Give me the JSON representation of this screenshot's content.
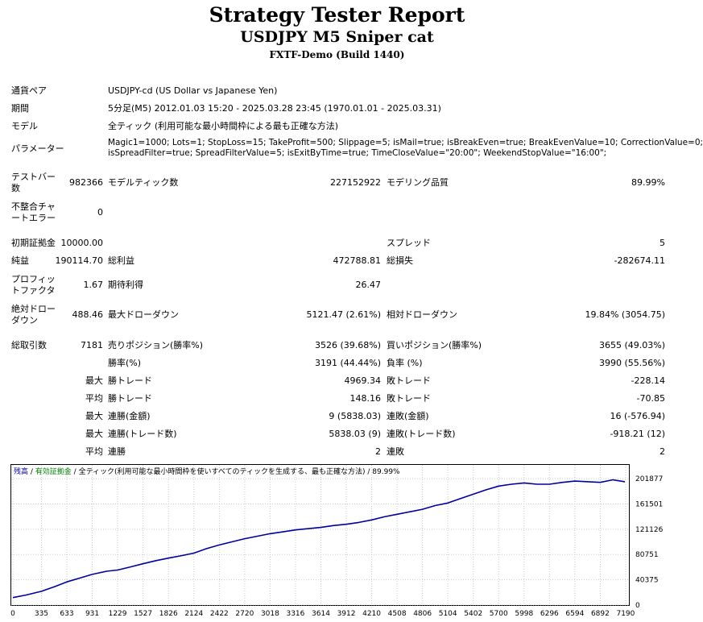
{
  "header": {
    "title": "Strategy Tester Report",
    "subtitle": "USDJPY M5 Sniper cat",
    "build": "FXTF-Demo (Build 1440)"
  },
  "info": {
    "pair_label": "通貨ペア",
    "pair_value": "USDJPY-cd (US Dollar vs Japanese Yen)",
    "period_label": "期間",
    "period_value": "5分足(M5) 2012.01.03 15:20 - 2025.03.28 23:45 (1970.01.01 - 2025.03.31)",
    "model_label": "モデル",
    "model_value": "全ティック (利用可能な最小時間枠による最も正確な方法)",
    "params_label": "パラメーター",
    "params_line1": "Magic1=1000; Lots=1; StopLoss=15; TakeProfit=500; Slippage=5; isMail=true; isBreakEven=true; BreakEvenValue=10; CorrectionValue=0;",
    "params_line2": "isSpreadFilter=true; SpreadFilterValue=5; isExitByTime=true; TimeCloseValue=\"20:00\"; WeekendStopValue=\"16:00\";"
  },
  "stats": {
    "bars_label_1": "テストバー",
    "bars_label_2": "数",
    "bars_value": "982366",
    "ticks_label": "モデルティック数",
    "ticks_value": "227152922",
    "quality_label": "モデリング品質",
    "quality_value": "89.99%",
    "mismatch_label_1": "不整合チャ",
    "mismatch_label_2": "ートエラー",
    "mismatch_value": "0",
    "deposit_label": "初期証拠金",
    "deposit_value": "10000.00",
    "spread_label": "スプレッド",
    "spread_value": "5",
    "net_label": "純益",
    "net_value": "190114.70",
    "gross_profit_label": "総利益",
    "gross_profit_value": "472788.81",
    "gross_loss_label": "総損失",
    "gross_loss_value": "-282674.11",
    "pf_label_1": "プロフィッ",
    "pf_label_2": "トファクタ",
    "pf_value": "1.67",
    "expected_label": "期待利得",
    "expected_value": "26.47",
    "abs_dd_label_1": "絶対ドロー",
    "abs_dd_label_2": "ダウン",
    "abs_dd_value": "488.46",
    "max_dd_label": "最大ドローダウン",
    "max_dd_value": "5121.47 (2.61%)",
    "rel_dd_label": "相対ドローダウン",
    "rel_dd_value": "19.84% (3054.75)",
    "total_label": "総取引数",
    "total_value": "7181",
    "short_label": "売りポジション(勝率%)",
    "short_value": "3526 (39.68%)",
    "long_label": "買いポジション(勝率%)",
    "long_value": "3655 (49.03%)",
    "win_rate_label": "勝率(%)",
    "win_rate_value": "3191 (44.44%)",
    "loss_rate_label": "負率 (%)",
    "loss_rate_value": "3990 (55.56%)",
    "max_word": "最大",
    "avg_word": "平均",
    "largest_win_label": "勝トレード",
    "largest_win_value": "4969.34",
    "largest_loss_label": "敗トレード",
    "largest_loss_value": "-228.14",
    "avg_win_label": "勝トレード",
    "avg_win_value": "148.16",
    "avg_loss_label": "敗トレード",
    "avg_loss_value": "-70.85",
    "max_cons_wins_label": "連勝(金額)",
    "max_cons_wins_value": "9 (5838.03)",
    "max_cons_losses_label": "連敗(金額)",
    "max_cons_losses_value": "16 (-576.94)",
    "max_cons_profit_label": "連勝(トレード数)",
    "max_cons_profit_value": "5838.03 (9)",
    "max_cons_loss_label": "連敗(トレード数)",
    "max_cons_loss_value": "-918.21 (12)",
    "avg_cons_wins_label": "連勝",
    "avg_cons_wins_value": "2",
    "avg_cons_losses_label": "連敗",
    "avg_cons_losses_value": "2"
  },
  "legend": {
    "balance": "残高",
    "sep1": " / ",
    "equity": "有効証拠金",
    "sep2": " / ",
    "model_note": "全ティック(利用可能な最小時間枠を使いすべてのティックを生成する、最も正確な方法)",
    "sep3": " / ",
    "quality": "89.99%"
  },
  "chart_data": {
    "type": "line",
    "x_ticks": [
      0,
      335,
      633,
      931,
      1229,
      1527,
      1826,
      2124,
      2422,
      2720,
      3018,
      3316,
      3614,
      3912,
      4210,
      4508,
      4806,
      5104,
      5402,
      5700,
      5998,
      6296,
      6594,
      6892,
      7190
    ],
    "y_ticks": [
      0,
      40375,
      80751,
      121126,
      161501,
      201877
    ],
    "xlim": [
      0,
      7181
    ],
    "ylim": [
      0,
      220000
    ],
    "line_color": "#0000a0",
    "series": [
      {
        "x": [
          0,
          150,
          335,
          500,
          633,
          780,
          931,
          1100,
          1229,
          1380,
          1527,
          1680,
          1826,
          1980,
          2124,
          2270,
          2422,
          2570,
          2720,
          2870,
          3018,
          3170,
          3316,
          3460,
          3614,
          3760,
          3912,
          4060,
          4210,
          4360,
          4508,
          4660,
          4806,
          4960,
          5104,
          5250,
          5402,
          5550,
          5700,
          5850,
          5998,
          6150,
          6296,
          6450,
          6594,
          6750,
          6892,
          7040,
          7181
        ],
        "y": [
          12000,
          16000,
          22000,
          30000,
          37000,
          43000,
          49000,
          54000,
          56000,
          61000,
          66000,
          71000,
          75000,
          79000,
          83000,
          90000,
          96000,
          101000,
          106000,
          110000,
          114000,
          117000,
          120000,
          122000,
          124000,
          127000,
          129000,
          132000,
          136000,
          141000,
          145000,
          149000,
          153000,
          159000,
          163000,
          170000,
          177000,
          184000,
          190000,
          193000,
          195000,
          193000,
          193000,
          196000,
          198000,
          197000,
          196000,
          200000,
          197000
        ]
      }
    ]
  }
}
